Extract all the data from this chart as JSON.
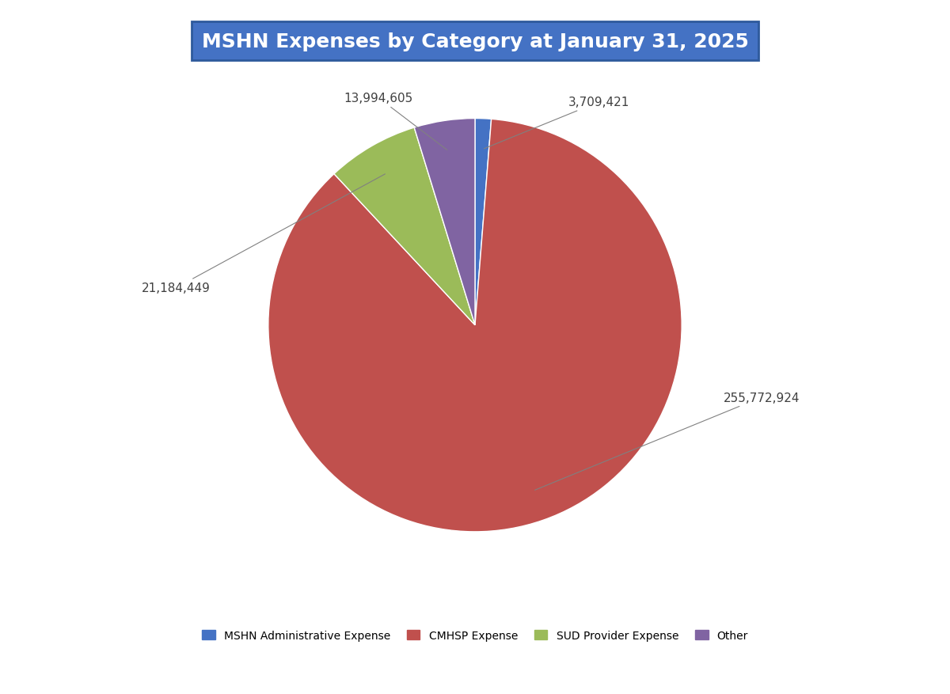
{
  "title": "MSHN Expenses by Category at January 31, 2025",
  "title_bg_color": "#4472c4",
  "title_text_color": "#ffffff",
  "slices": [
    {
      "label": "MSHN Administrative Expense",
      "value": 3709421,
      "color": "#4472c4"
    },
    {
      "label": "CMHSP Expense",
      "value": 255772924,
      "color": "#c0504d"
    },
    {
      "label": "SUD Provider Expense",
      "value": 21184449,
      "color": "#9bbb59"
    },
    {
      "label": "Other",
      "value": 13994605,
      "color": "#8064a2"
    }
  ],
  "label_format": "{:,}",
  "background_color": "#ffffff",
  "figure_width": 12.0,
  "figure_height": 8.78,
  "dpi": 100
}
